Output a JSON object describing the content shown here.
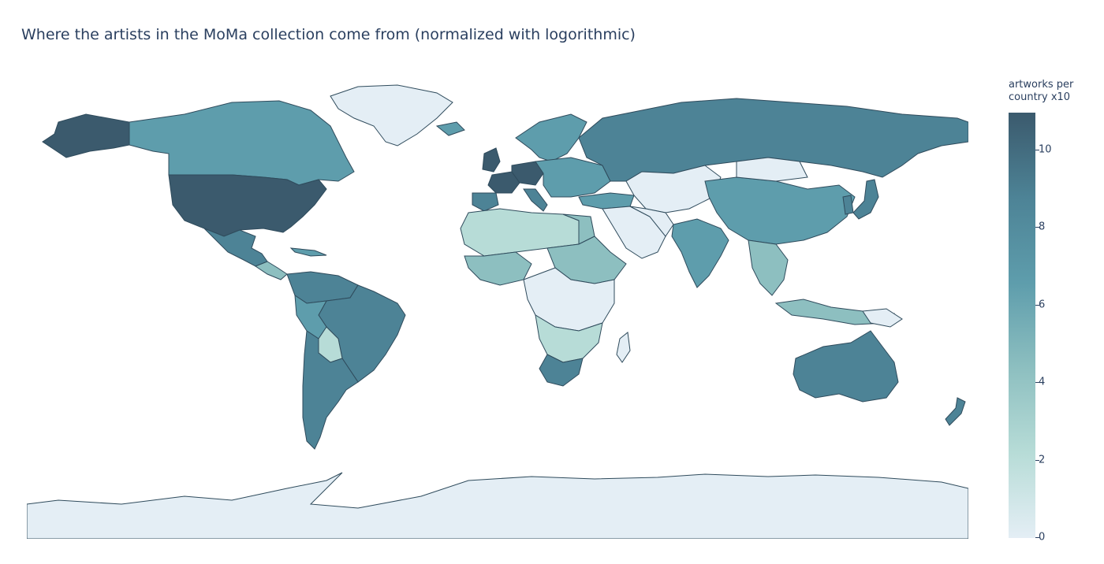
{
  "title": "Where the artists in the MoMa collection come from (normalized with logorithmic)",
  "colorbar": {
    "title_line1": "artworks per",
    "title_line2": "country x10",
    "ticks": [
      "0",
      "2",
      "4",
      "6",
      "8",
      "10"
    ],
    "range": [
      0,
      11
    ],
    "colorscale": [
      "#e4eef5",
      "#b7dcd7",
      "#8dbfc0",
      "#5e9dac",
      "#4d8396",
      "#3b5a6d"
    ]
  },
  "colors": {
    "border": "#2f4b5c",
    "ocean": "#ffffff",
    "land_min": "#e4eef5",
    "land_max": "#3b5a6d"
  }
}
